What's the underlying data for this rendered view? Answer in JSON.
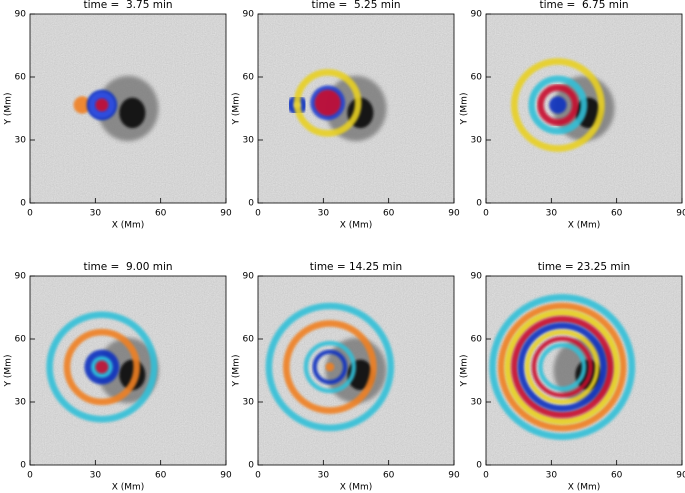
{
  "chart_data": [
    {
      "type": "image",
      "title": "time =  3.75 min",
      "xlabel": "X (Mm)",
      "ylabel": "Y (Mm)",
      "xlim": [
        0,
        90
      ],
      "ylim": [
        0,
        90
      ],
      "xticks": [
        0,
        30,
        60,
        90
      ],
      "yticks": [
        0,
        30,
        60,
        90
      ]
    },
    {
      "type": "image",
      "title": "time =  5.25 min",
      "xlabel": "X (Mm)",
      "ylabel": "Y (Mm)",
      "xlim": [
        0,
        90
      ],
      "ylim": [
        0,
        90
      ],
      "xticks": [
        0,
        30,
        60,
        90
      ],
      "yticks": [
        0,
        30,
        60,
        90
      ]
    },
    {
      "type": "image",
      "title": "time =  6.75 min",
      "xlabel": "X (Mm)",
      "ylabel": "Y (Mm)",
      "xlim": [
        0,
        90
      ],
      "ylim": [
        0,
        90
      ],
      "xticks": [
        0,
        30,
        60,
        90
      ],
      "yticks": [
        0,
        30,
        60,
        90
      ]
    },
    {
      "type": "image",
      "title": "time =  9.00 min",
      "xlabel": "X (Mm)",
      "ylabel": "Y (Mm)",
      "xlim": [
        0,
        90
      ],
      "ylim": [
        0,
        90
      ],
      "xticks": [
        0,
        30,
        60,
        90
      ],
      "yticks": [
        0,
        30,
        60,
        90
      ]
    },
    {
      "type": "image",
      "title": "time = 14.25 min",
      "xlabel": "X (Mm)",
      "ylabel": "Y (Mm)",
      "xlim": [
        0,
        90
      ],
      "ylim": [
        0,
        90
      ],
      "xticks": [
        0,
        30,
        60,
        90
      ],
      "yticks": [
        0,
        30,
        60,
        90
      ]
    },
    {
      "type": "image",
      "title": "time = 23.25 min",
      "xlabel": "X (Mm)",
      "ylabel": "Y (Mm)",
      "xlim": [
        0,
        90
      ],
      "ylim": [
        0,
        90
      ],
      "xticks": [
        0,
        30,
        60,
        90
      ],
      "yticks": [
        0,
        30,
        60,
        90
      ]
    }
  ]
}
